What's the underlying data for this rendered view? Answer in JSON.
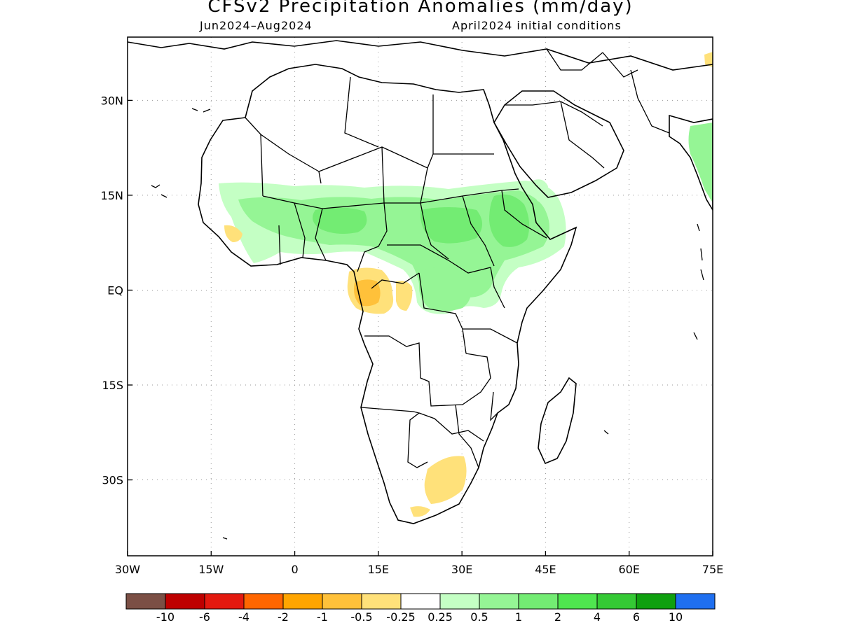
{
  "title": "CFSv2 Precipitation Anomalies (mm/day)",
  "subtitle_left": "Jun2024–Aug2024",
  "subtitle_right": "April2024 initial conditions",
  "map": {
    "lon_range": [
      -30,
      75
    ],
    "lat_range": [
      -42,
      40
    ],
    "x_ticks": [
      "30W",
      "15W",
      "0",
      "15E",
      "30E",
      "45E",
      "60E",
      "75E"
    ],
    "x_tick_values": [
      -30,
      -15,
      0,
      15,
      30,
      45,
      60,
      75
    ],
    "y_ticks": [
      "30N",
      "15N",
      "EQ",
      "15S",
      "30S"
    ],
    "y_tick_values": [
      30,
      15,
      0,
      -15,
      -30
    ],
    "grid": "dotted"
  },
  "colorbar": {
    "colors": [
      "#7b4f45",
      "#be0000",
      "#e3190f",
      "#ff6600",
      "#ffa500",
      "#ffc13a",
      "#ffe17a",
      "#ffffff",
      "#c4ffc4",
      "#95f595",
      "#73ec73",
      "#4fe64f",
      "#34c934",
      "#0fa00f",
      "#1f6ff0"
    ],
    "labels": [
      "-10",
      "-6",
      "-4",
      "-2",
      "-1",
      "-0.5",
      "-0.25",
      "0.25",
      "0.5",
      "1",
      "2",
      "4",
      "6",
      "10"
    ]
  },
  "regions": [
    {
      "name": "sahel-wet-band",
      "category": "0.25-0.5",
      "color": "#c4ffc4"
    },
    {
      "name": "sahel-core",
      "category": "0.5-1",
      "color": "#95f595"
    },
    {
      "name": "ethiopia-wet",
      "category": "1-2",
      "color": "#73ec73"
    },
    {
      "name": "central-africa-wet",
      "category": "0.5-1",
      "color": "#95f595"
    },
    {
      "name": "gabon-dry",
      "category": "-0.5--0.25",
      "color": "#ffe17a"
    },
    {
      "name": "gabon-dry-core",
      "category": "-1--0.5",
      "color": "#ffc13a"
    },
    {
      "name": "south-africa-dry",
      "category": "-0.5--0.25",
      "color": "#ffe17a"
    },
    {
      "name": "india-west-wet",
      "category": "0.5-1",
      "color": "#95f595"
    }
  ]
}
